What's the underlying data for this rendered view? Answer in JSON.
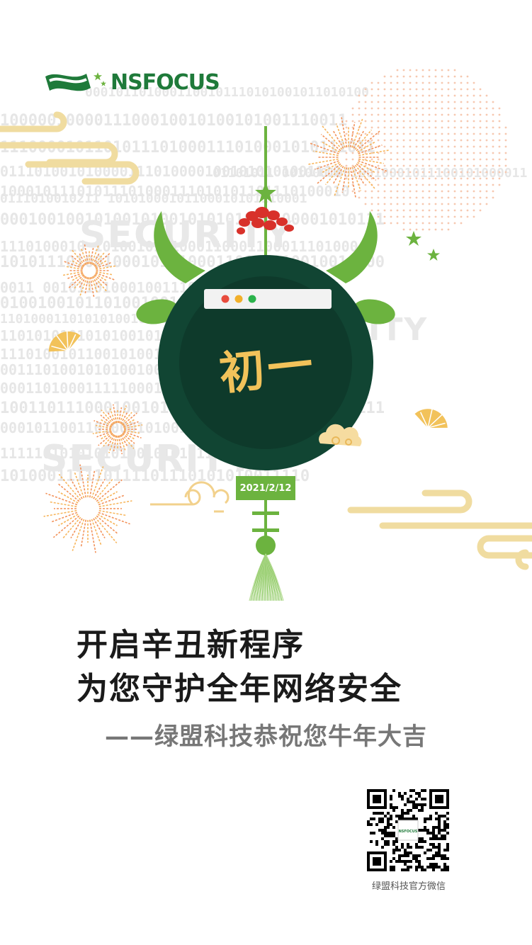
{
  "brand": {
    "name": "NSFOCUS"
  },
  "headline": {
    "line1": "开启辛丑新程序",
    "line2": "为您守护全年网络安全",
    "line3": "——绿盟科技恭祝您牛年大吉"
  },
  "lantern": {
    "title": "初一",
    "date": "2021/2/12"
  },
  "background": {
    "watermark_words": [
      "SECURITY",
      "SECURITY",
      "SECURITY",
      "ITY"
    ],
    "binary_rows": [
      "0001011010001100101110101001011010100",
      "1000001000011100010010100101001110011",
      "1110000101101011101000111010001010111011",
      "0111010010100001110100001001010101001110",
      "01101011    00100010010010001011100101000011",
      "10001011101011101000111010101101110100010",
      "0111010010211  10101000101100010101110001",
      "00010010010100101001010101000100001010111",
      "1110100010  1010010101000110001100011101000",
      "10101110100100010111000110001010010010000",
      "0011  00101101000100111001010100101011001",
      "0100100101101001001000100100100010101",
      "1101000110101010010101110100011101010101",
      "1101010101010100101010100101010111011101",
      "1110100101100101001010110101001000011101",
      "0011101001010100100101000111010010100110",
      "0001101000111110001000111011110001010",
      "10011011100010010100001101000100000011111",
      "0001011001101000101001010101010011001",
      "1111101010101010010101011010011101001",
      "101000111110111101110101010011110"
    ],
    "palette": {
      "green": "#6cb33f",
      "dark_green": "#114533",
      "gold": "#f2c25a",
      "orange": "#f2925a"
    }
  },
  "qr": {
    "caption": "绿盟科技官方微信",
    "center_label": "NSFOCUS"
  }
}
